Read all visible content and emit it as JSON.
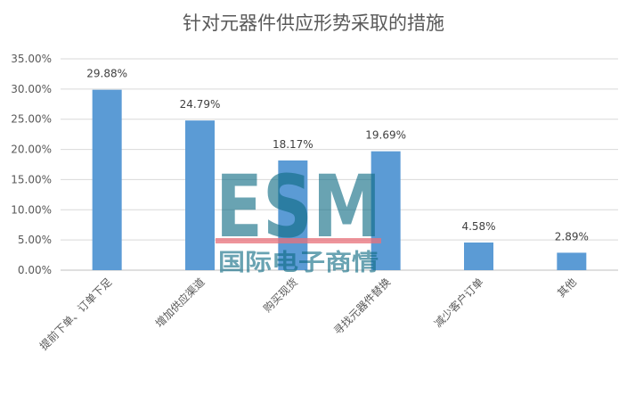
{
  "chart_data": {
    "type": "bar",
    "title": "针对元器件供应形势采取的措施",
    "categories": [
      "提前下单、订单下足",
      "增加供应渠道",
      "购买现货",
      "寻找元器件替换",
      "减少客户订单",
      "其他"
    ],
    "values": [
      29.88,
      24.79,
      18.17,
      19.69,
      4.58,
      2.89
    ],
    "data_labels": [
      "29.88%",
      "24.79%",
      "18.17%",
      "19.69%",
      "4.58%",
      "2.89%"
    ],
    "y_ticks": [
      "0.00%",
      "5.00%",
      "10.00%",
      "15.00%",
      "20.00%",
      "25.00%",
      "30.00%",
      "35.00%"
    ],
    "ylim": [
      0,
      35
    ],
    "grid": true,
    "bar_color": "#5b9bd5"
  },
  "watermark": {
    "logo": "ESM",
    "text": "国际电子商情"
  }
}
